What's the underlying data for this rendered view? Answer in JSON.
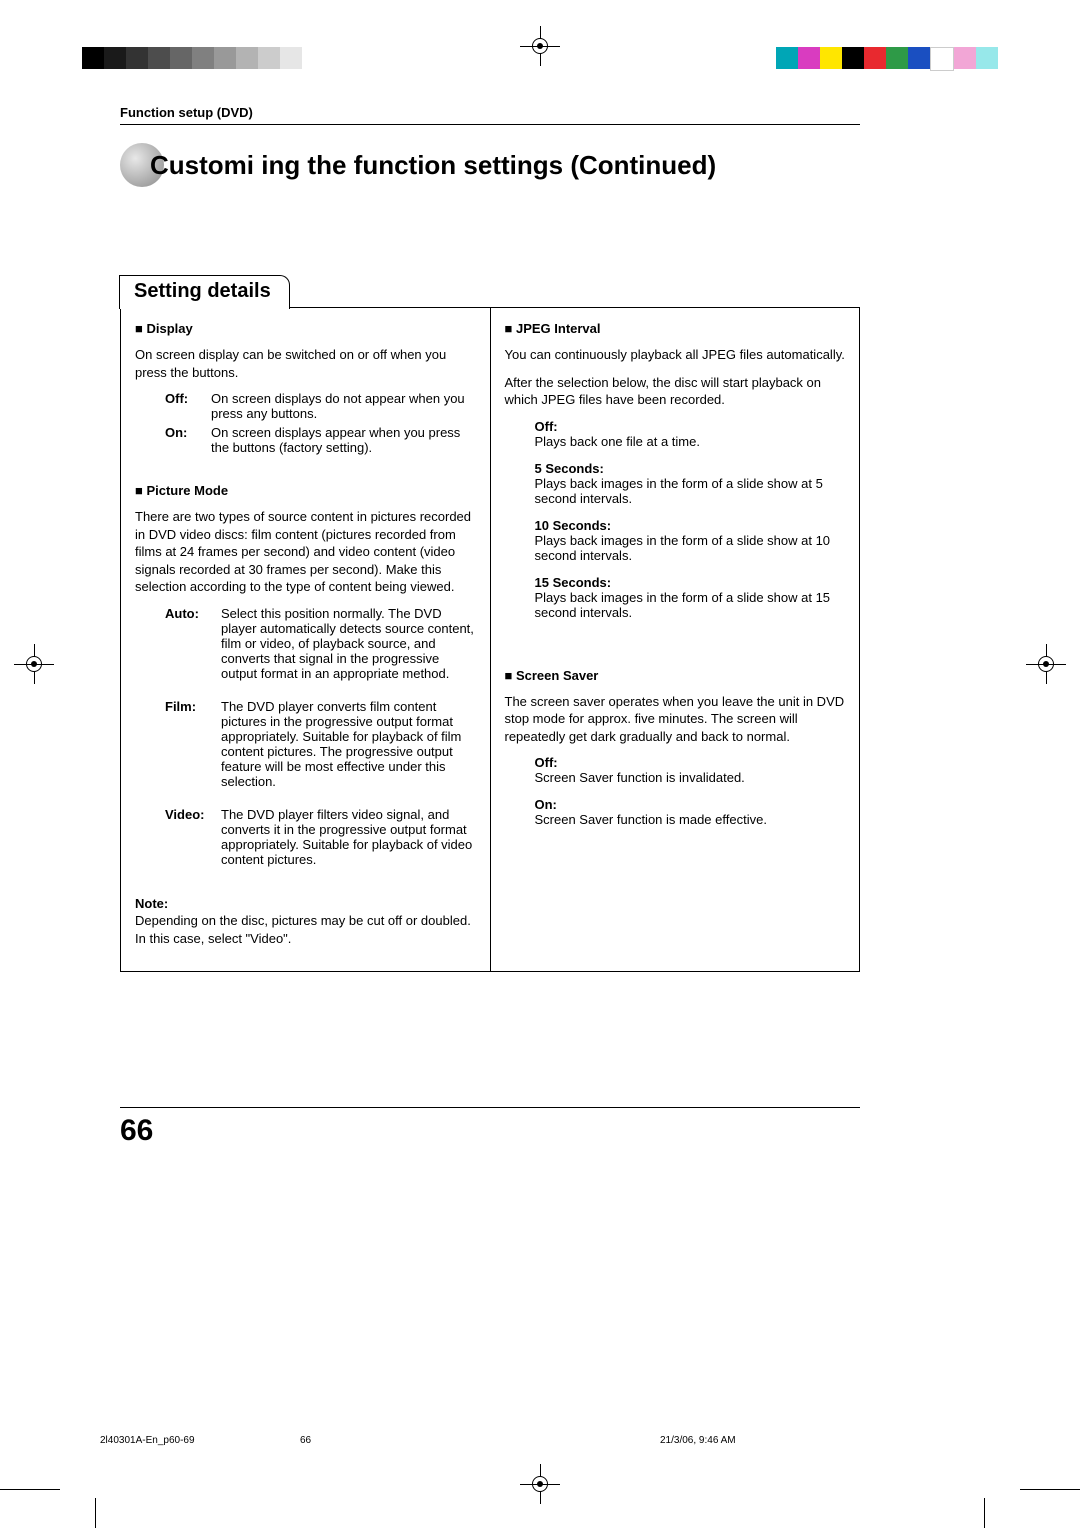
{
  "printer_marks": {
    "gray_swatches": [
      "#000000",
      "#1a1a1a",
      "#333333",
      "#4d4d4d",
      "#666666",
      "#808080",
      "#999999",
      "#b3b3b3",
      "#cccccc",
      "#e6e6e6"
    ],
    "color_swatches": [
      "#00a6b6",
      "#d93cc0",
      "#ffe600",
      "#000000",
      "#e8292f",
      "#2e9a47",
      "#1a4fc1",
      "#ffffff",
      "#f2a6d6",
      "#97e8ea"
    ]
  },
  "header": {
    "section": "Function setup (DVD)",
    "title": "Customi  ing the function settings (Continued)"
  },
  "details": {
    "heading": "Setting details",
    "left": {
      "display": {
        "title": "Display",
        "intro": "On screen display can be switched on or off when you press the buttons.",
        "options": [
          {
            "label": "Off:",
            "desc": "On screen displays do not appear when you press any buttons."
          },
          {
            "label": "On:",
            "desc": "On screen displays appear when you press the buttons (factory setting)."
          }
        ]
      },
      "picture_mode": {
        "title": "Picture Mode",
        "intro": "There are two types of source content in pictures recorded in DVD video discs: film content (pictures recorded from films at 24 frames per second) and video content (video signals recorded at 30 frames per second). Make this selection according to the type of content being viewed.",
        "options": [
          {
            "label": "Auto:",
            "desc": "Select this position normally. The DVD player automatically detects source content, film or video, of playback source, and converts that signal in the progressive output format in an appropriate method."
          },
          {
            "label": "Film:",
            "desc": "The DVD player converts film content pictures in the progressive output format appropriately. Suitable for playback of film content pictures. The progressive output feature will be most effective under this selection."
          },
          {
            "label": "Video:",
            "desc": "The DVD player filters video signal, and converts it in the progressive output format appropriately. Suitable for playback of video content pictures."
          }
        ],
        "note_label": "Note:",
        "note": "Depending on the disc, pictures may be cut off or doubled. In this case, select \"Video\"."
      }
    },
    "right": {
      "jpeg": {
        "title": "JPEG Interval",
        "intro1": "You can continuously playback all JPEG files automatically.",
        "intro2": "After the selection below, the disc will start playback on which JPEG files have been recorded.",
        "options": [
          {
            "label": "Off:",
            "desc": "Plays back one file at a time."
          },
          {
            "label": "5 Seconds:",
            "desc": "Plays back images in the form of a slide show at 5 second intervals."
          },
          {
            "label": "10 Seconds:",
            "desc": "Plays back images in the form of a slide show at 10 second intervals."
          },
          {
            "label": "15 Seconds:",
            "desc": "Plays back images in the form of a slide show at 15 second intervals."
          }
        ]
      },
      "saver": {
        "title": "Screen Saver",
        "intro": "The screen saver operates when you leave the unit in DVD stop mode for approx. five minutes. The screen will repeatedly get dark gradually and back to normal.",
        "options": [
          {
            "label": "Off:",
            "desc": "Screen Saver function is invalidated."
          },
          {
            "label": "On:",
            "desc": "Screen Saver function is made effective."
          }
        ]
      }
    }
  },
  "page_number": "66",
  "footer": {
    "file": "2l40301A-En_p60-69",
    "page": "66",
    "timestamp": "21/3/06, 9:46 AM"
  }
}
